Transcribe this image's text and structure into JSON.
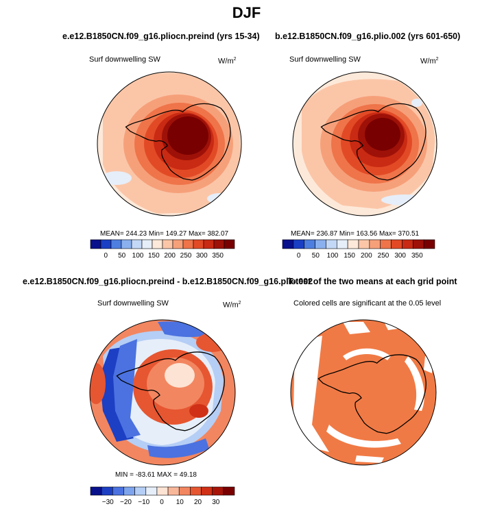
{
  "figure": {
    "title": "DJF",
    "panels": [
      {
        "id": "case",
        "title": "e.e12.B1850CN.f09_g16.pliocn.preind (yrs 15-34)",
        "variable": "Surf downwelling SW",
        "units_base": "W/m",
        "units_exp": "2",
        "stats": "MEAN= 244.23   Min= 149.27   Max= 382.07",
        "colorbar_labels": [
          "0",
          "50",
          "100",
          "150",
          "200",
          "250",
          "300",
          "350"
        ]
      },
      {
        "id": "control",
        "title": "b.e12.B1850CN.f09_g16.plio.002 (yrs 601-650)",
        "variable": "Surf downwelling SW",
        "units_base": "W/m",
        "units_exp": "2",
        "stats": "MEAN= 236.87   Min= 163.56   Max= 370.51",
        "colorbar_labels": [
          "0",
          "50",
          "100",
          "150",
          "200",
          "250",
          "300",
          "350"
        ]
      },
      {
        "id": "difference",
        "title": "e.e12.B1850CN.f09_g16.pliocn.preind - b.e12.B1850CN.f09_g16.plio.002",
        "variable": "Surf downwelling SW",
        "units_base": "W/m",
        "units_exp": "2",
        "stats": "MIN = -83.61  MAX =  49.18",
        "colorbar_labels": [
          "−30",
          "−20",
          "−10",
          "0",
          "10",
          "20",
          "30"
        ]
      },
      {
        "id": "ttest",
        "title": "T-test of the two means at each grid point",
        "note": "Colored cells are significant at the 0.05 level"
      }
    ],
    "colors": {
      "seq_scale": [
        "#08108c",
        "#1a3fc4",
        "#4e7fe0",
        "#8bb0ee",
        "#c3d8f6",
        "#e6eef9",
        "#fde9d9",
        "#fbc6a8",
        "#f6a07a",
        "#ef7449",
        "#e24a26",
        "#c92a13",
        "#9e1108",
        "#780000"
      ],
      "diff_scale": [
        "#08108c",
        "#1c3fc4",
        "#4b72e0",
        "#7ea4ee",
        "#b5cef5",
        "#e6eef9",
        "#fde3d3",
        "#f9b79a",
        "#f28660",
        "#e65631",
        "#cf3016",
        "#a81408",
        "#7a0000"
      ],
      "ttest_fill": "#f07a45"
    }
  }
}
